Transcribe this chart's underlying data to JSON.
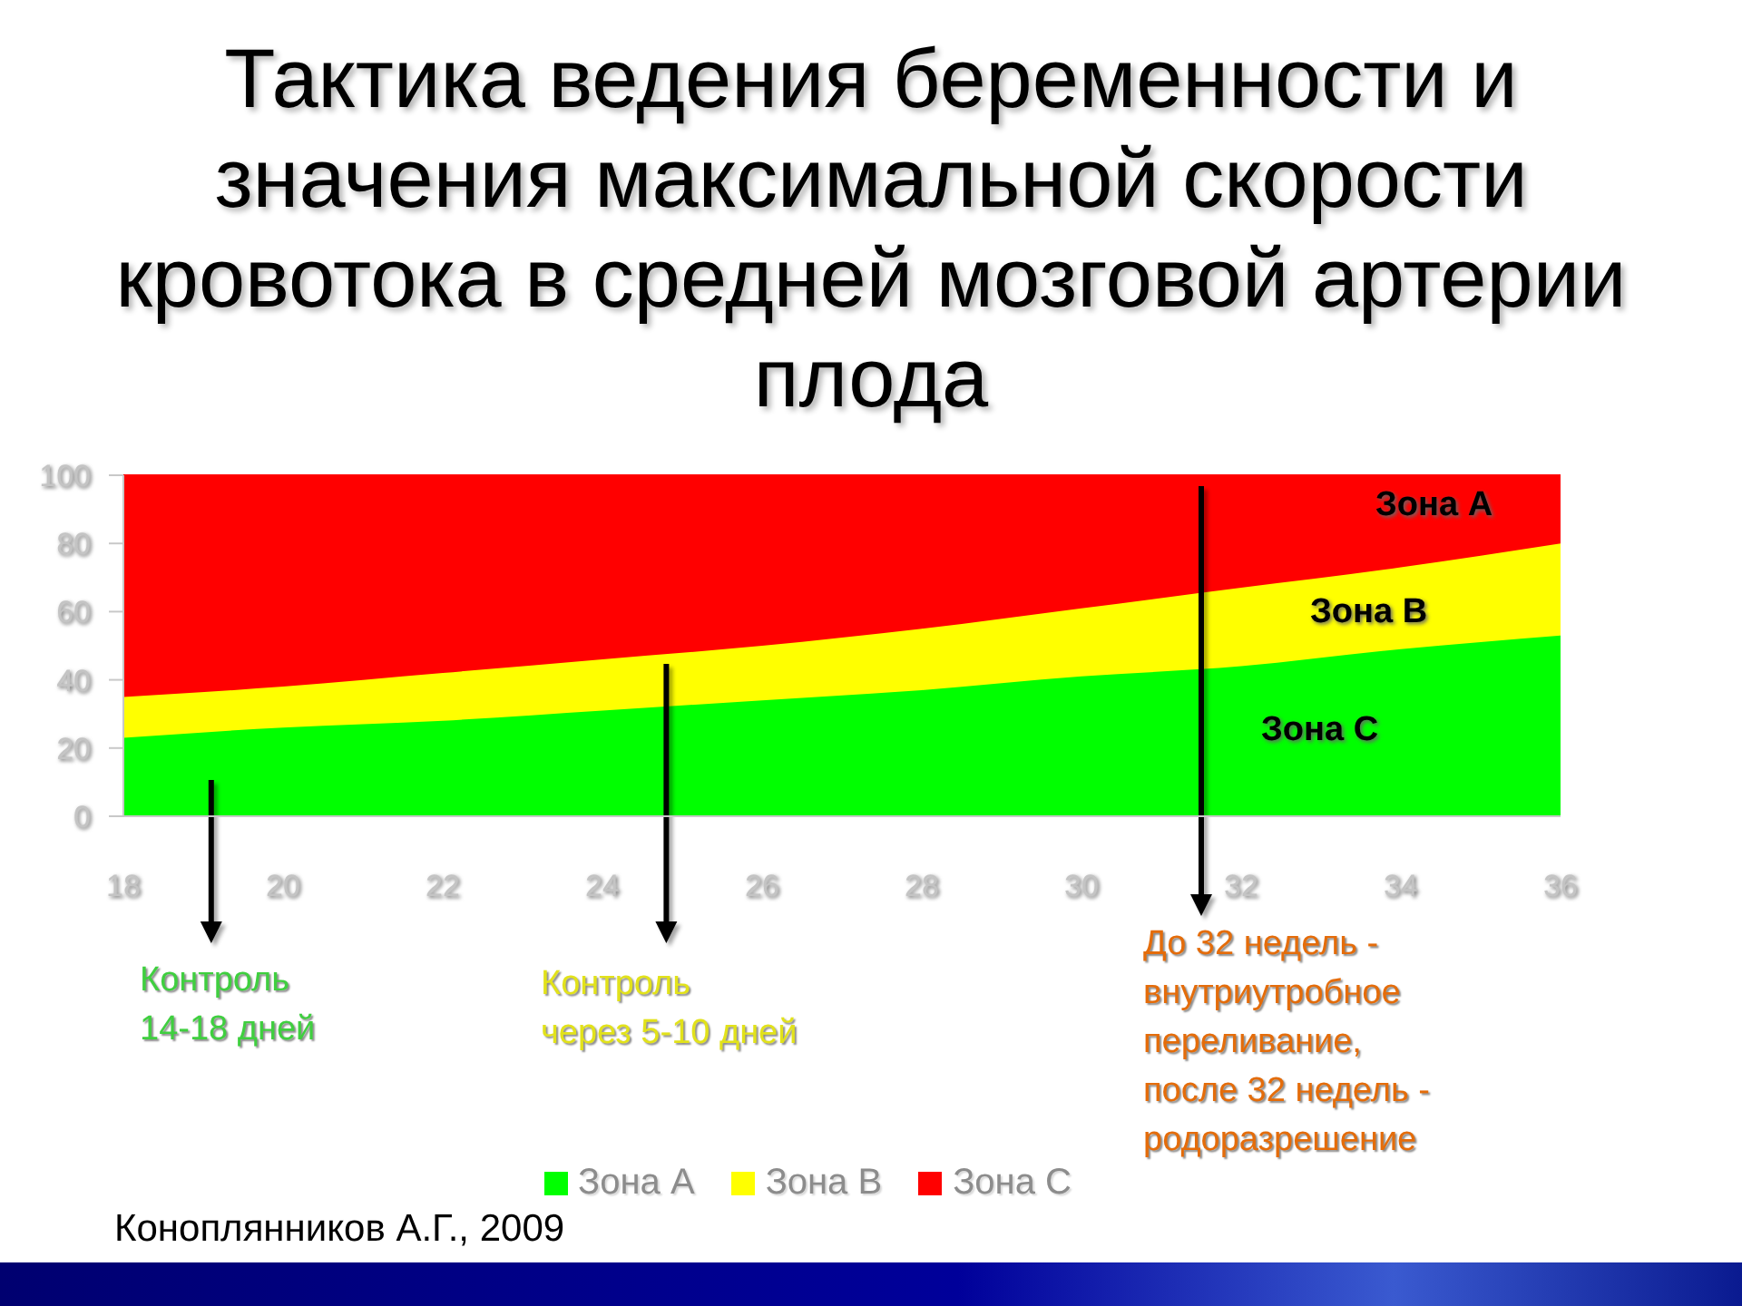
{
  "chart_data": {
    "type": "area",
    "stacked": true,
    "title": "Тактика ведения беременности и значения максимальной скорости кровотока в средней мозговой артерии плода",
    "x": [
      18,
      20,
      22,
      24,
      26,
      28,
      30,
      32,
      34,
      36
    ],
    "series": [
      {
        "name": "Зона А",
        "color": "#00ff00",
        "values": [
          23,
          26,
          28,
          31,
          34,
          37,
          41,
          44,
          49,
          53
        ]
      },
      {
        "name": "Зона В",
        "color": "#ffff00",
        "values": [
          12,
          12,
          14,
          15,
          16,
          18,
          20,
          23,
          24,
          27
        ]
      },
      {
        "name": "Зона С",
        "color": "#ff0000",
        "values": [
          65,
          62,
          58,
          54,
          50,
          45,
          39,
          33,
          27,
          20
        ]
      }
    ],
    "xlim": [
      18,
      36
    ],
    "xticks": [
      18,
      20,
      22,
      24,
      26,
      28,
      30,
      32,
      34,
      36
    ],
    "ylim": [
      0,
      100
    ],
    "yticks": [
      0,
      20,
      40,
      60,
      80,
      100
    ],
    "legend": "bottom",
    "ref_lines": [
      {
        "axis": "x",
        "value": 19.1,
        "label": "Контроль\n14-18 дней",
        "color": "#000000"
      },
      {
        "axis": "x",
        "value": 24.8,
        "label": "Контроль\nчерез 5-10 дней",
        "color": "#000000"
      },
      {
        "axis": "x",
        "value": 31.5,
        "label": "До 32 недель -\nвнутриутробное\nпереливание,\nпосле 32 недель -\nродоразрешение",
        "color": "#000000"
      }
    ],
    "annotations": [
      "Зона А",
      "Зона В",
      "Зона С",
      "Коноплянников А.Г., 2009"
    ]
  }
}
